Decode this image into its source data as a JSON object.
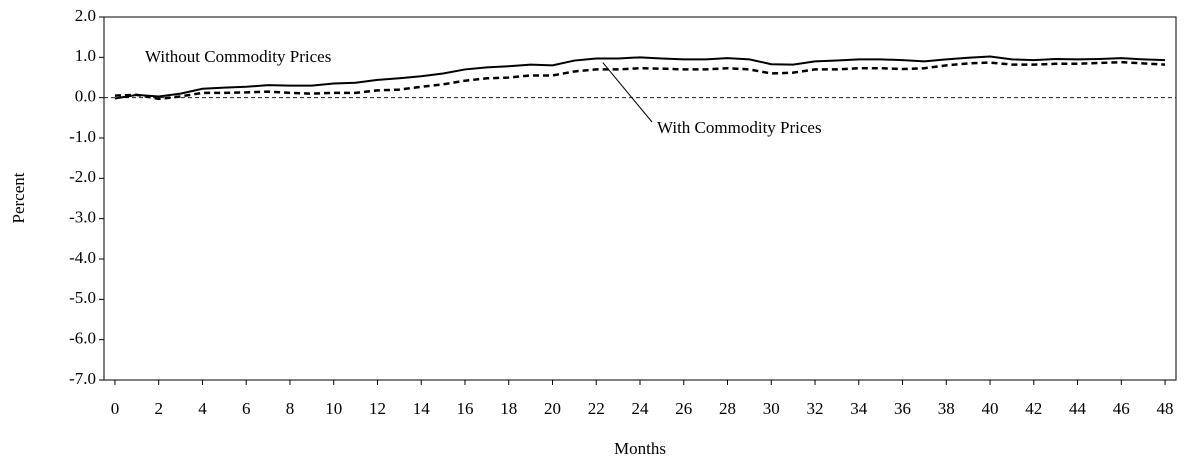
{
  "chart_data": {
    "type": "line",
    "x_label": "Months",
    "y_label": "Percent",
    "x": [
      0,
      1,
      2,
      3,
      4,
      5,
      6,
      7,
      8,
      9,
      10,
      11,
      12,
      13,
      14,
      15,
      16,
      17,
      18,
      19,
      20,
      21,
      22,
      23,
      24,
      25,
      26,
      27,
      28,
      29,
      30,
      31,
      32,
      33,
      34,
      35,
      36,
      37,
      38,
      39,
      40,
      41,
      42,
      43,
      44,
      45,
      46,
      47,
      48
    ],
    "series": [
      {
        "name": "Without Commodity Prices",
        "color": "#000000",
        "dash": "solid",
        "values": [
          -0.02,
          0.07,
          0.03,
          0.1,
          0.22,
          0.25,
          0.27,
          0.31,
          0.3,
          0.3,
          0.35,
          0.37,
          0.44,
          0.48,
          0.53,
          0.6,
          0.7,
          0.75,
          0.78,
          0.82,
          0.8,
          0.92,
          0.97,
          0.97,
          1.0,
          0.97,
          0.95,
          0.95,
          0.98,
          0.95,
          0.83,
          0.82,
          0.9,
          0.92,
          0.95,
          0.95,
          0.93,
          0.9,
          0.95,
          0.99,
          1.02,
          0.95,
          0.93,
          0.96,
          0.95,
          0.96,
          0.98,
          0.95,
          0.93
        ]
      },
      {
        "name": "With Commodity Prices",
        "color": "#000000",
        "dash": "dashed",
        "values": [
          0.05,
          0.07,
          -0.03,
          0.03,
          0.12,
          0.12,
          0.13,
          0.15,
          0.12,
          0.1,
          0.12,
          0.12,
          0.18,
          0.2,
          0.27,
          0.33,
          0.42,
          0.48,
          0.5,
          0.55,
          0.55,
          0.65,
          0.7,
          0.7,
          0.73,
          0.72,
          0.7,
          0.7,
          0.73,
          0.7,
          0.6,
          0.62,
          0.7,
          0.7,
          0.73,
          0.73,
          0.71,
          0.73,
          0.8,
          0.85,
          0.87,
          0.82,
          0.82,
          0.84,
          0.84,
          0.86,
          0.88,
          0.85,
          0.82
        ]
      }
    ],
    "xlim": [
      -0.5,
      48.5
    ],
    "xticks": [
      0,
      2,
      4,
      6,
      8,
      10,
      12,
      14,
      16,
      18,
      20,
      22,
      24,
      26,
      28,
      30,
      32,
      34,
      36,
      38,
      40,
      42,
      44,
      46,
      48
    ],
    "ylim": [
      -7,
      2
    ],
    "yticks": [
      {
        "value": 2,
        "label": "2.0"
      },
      {
        "value": 1,
        "label": "1.0"
      },
      {
        "value": 0,
        "label": "0.0"
      },
      {
        "value": -1,
        "label": "-1.0"
      },
      {
        "value": -2,
        "label": "-2.0"
      },
      {
        "value": -3,
        "label": "-3.0"
      },
      {
        "value": -4,
        "label": "-4.0"
      },
      {
        "value": -5,
        "label": "-5.0"
      },
      {
        "value": -6,
        "label": "-6.0"
      },
      {
        "value": -7,
        "label": "-7.0"
      }
    ]
  }
}
